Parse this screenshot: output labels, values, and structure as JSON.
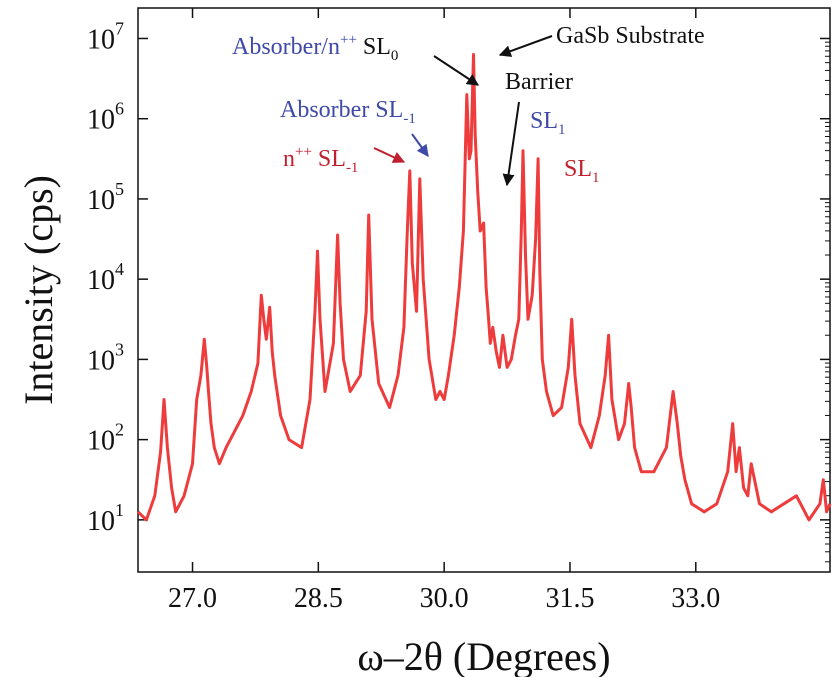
{
  "chart_data": {
    "type": "line",
    "title": "",
    "xlabel": "ω–2θ (Degrees)",
    "ylabel": "Intensity (cps)",
    "xlim": [
      26.35,
      34.6
    ],
    "ylim_log10": [
      0.35,
      7.38
    ],
    "y_scale": "log",
    "x_ticks": [
      27.0,
      28.5,
      30.0,
      31.5,
      33.0
    ],
    "x_tick_labels": [
      "27.0",
      "28.5",
      "30.0",
      "31.5",
      "33.0"
    ],
    "y_ticks": [
      1,
      2,
      3,
      4,
      5,
      6,
      7
    ],
    "y_tick_labels": [
      {
        "base": "10",
        "exp": "1"
      },
      {
        "base": "10",
        "exp": "2"
      },
      {
        "base": "10",
        "exp": "3"
      },
      {
        "base": "10",
        "exp": "4"
      },
      {
        "base": "10",
        "exp": "5"
      },
      {
        "base": "10",
        "exp": "6"
      },
      {
        "base": "10",
        "exp": "7"
      }
    ],
    "series": [
      {
        "color": "#ee3b3b",
        "x": [
          26.35,
          26.45,
          26.55,
          26.62,
          26.66,
          26.7,
          26.75,
          26.8,
          26.9,
          27.0,
          27.05,
          27.1,
          27.14,
          27.17,
          27.19,
          27.22,
          27.26,
          27.32,
          27.4,
          27.5,
          27.6,
          27.7,
          27.78,
          27.82,
          27.85,
          27.88,
          27.92,
          27.95,
          27.98,
          28.05,
          28.15,
          28.3,
          28.4,
          28.46,
          28.49,
          28.52,
          28.58,
          28.68,
          28.73,
          28.76,
          28.8,
          28.88,
          29.0,
          29.07,
          29.1,
          29.14,
          29.22,
          29.35,
          29.45,
          29.52,
          29.56,
          29.59,
          29.62,
          29.67,
          29.71,
          29.75,
          29.82,
          29.9,
          29.95,
          30.0,
          30.05,
          30.12,
          30.18,
          30.23,
          30.27,
          30.3,
          30.32,
          30.35,
          30.37,
          30.4,
          30.43,
          30.47,
          30.5,
          30.53,
          30.55,
          30.58,
          30.62,
          30.66,
          30.7,
          30.75,
          30.8,
          30.85,
          30.89,
          30.92,
          30.94,
          30.97,
          31.0,
          31.05,
          31.09,
          31.12,
          31.14,
          31.17,
          31.22,
          31.3,
          31.4,
          31.48,
          31.52,
          31.56,
          31.62,
          31.75,
          31.85,
          31.92,
          31.96,
          32.0,
          32.08,
          32.15,
          32.2,
          32.23,
          32.27,
          32.35,
          32.5,
          32.65,
          32.73,
          32.78,
          32.82,
          32.87,
          32.95,
          33.1,
          33.25,
          33.38,
          33.44,
          33.48,
          33.52,
          33.57,
          33.62,
          33.66,
          33.7,
          33.76,
          33.9,
          34.05,
          34.2,
          34.35,
          34.48,
          34.52,
          34.56,
          34.6
        ],
        "y": [
          1.1,
          1.0,
          1.3,
          1.85,
          2.5,
          1.9,
          1.4,
          1.1,
          1.3,
          1.7,
          2.5,
          2.8,
          3.25,
          2.9,
          2.6,
          2.2,
          1.9,
          1.7,
          1.9,
          2.1,
          2.3,
          2.6,
          2.95,
          3.8,
          3.5,
          3.25,
          3.65,
          3.1,
          2.8,
          2.3,
          2.0,
          1.9,
          2.5,
          3.6,
          4.35,
          3.5,
          2.6,
          3.2,
          4.55,
          3.7,
          3.0,
          2.6,
          2.8,
          3.6,
          4.8,
          3.5,
          2.7,
          2.4,
          2.8,
          3.4,
          4.6,
          5.35,
          4.2,
          3.6,
          5.25,
          4.0,
          3.0,
          2.5,
          2.6,
          2.5,
          2.8,
          3.3,
          3.9,
          4.6,
          6.3,
          5.5,
          5.6,
          6.8,
          5.8,
          5.1,
          4.6,
          4.7,
          3.9,
          3.5,
          3.2,
          3.4,
          3.1,
          2.9,
          3.3,
          2.9,
          3.0,
          3.3,
          3.5,
          4.6,
          5.6,
          4.3,
          3.5,
          3.8,
          4.5,
          5.5,
          4.1,
          3.0,
          2.6,
          2.3,
          2.4,
          2.9,
          3.5,
          2.8,
          2.2,
          1.9,
          2.3,
          2.8,
          3.3,
          2.5,
          2.0,
          2.2,
          2.7,
          2.4,
          1.9,
          1.6,
          1.6,
          1.9,
          2.6,
          2.2,
          1.8,
          1.5,
          1.2,
          1.1,
          1.2,
          1.6,
          2.2,
          1.6,
          1.9,
          1.4,
          1.3,
          1.7,
          1.5,
          1.2,
          1.1,
          1.2,
          1.3,
          1.0,
          1.2,
          1.5,
          1.1,
          1.2
        ]
      }
    ],
    "annotations": [
      {
        "text": "Absorber/n",
        "sup": "++",
        "tail": " SL",
        "sub": "0",
        "color_main": "#3e49a8",
        "color_tail": "#111111"
      },
      {
        "text": "GaSb Substrate",
        "color": "#111111"
      },
      {
        "text": "Barrier",
        "color": "#111111"
      },
      {
        "text": "Absorber SL",
        "sub": "-1",
        "color": "#3e49a8"
      },
      {
        "text": "n",
        "sup": "++",
        "tail": " SL",
        "sub": "-1",
        "color": "#c0202e"
      },
      {
        "text": "SL",
        "sub": "1",
        "color": "#3e49a8"
      },
      {
        "text": "SL",
        "sub": "1",
        "color": "#c0202e"
      }
    ]
  }
}
